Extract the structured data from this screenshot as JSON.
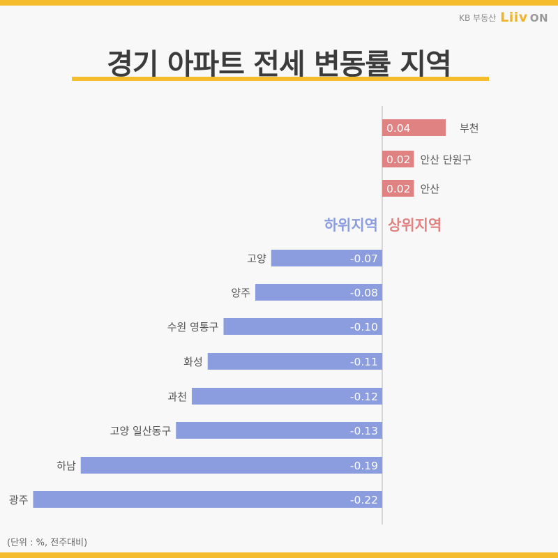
{
  "brand": {
    "kb_text": "KB 부동산",
    "logo_text": "Liiv",
    "logo_on": "ON"
  },
  "title": "경기 아파트 전세 변동률 지역",
  "unit_note": "(단위 : %, 전주대비)",
  "colors": {
    "positive": "#e08282",
    "negative": "#8b9ddf",
    "accent": "#f5bc2e"
  },
  "chart_data": {
    "type": "bar",
    "orientation": "horizontal",
    "groups": [
      {
        "label": "상위지역",
        "color": "#e08282"
      },
      {
        "label": "하위지역",
        "color": "#8b9ddf"
      }
    ],
    "categories": [
      "부천",
      "안산 단원구",
      "안산",
      "고양",
      "양주",
      "수원 영통구",
      "화성",
      "과천",
      "고양 일산동구",
      "하남",
      "광주"
    ],
    "values": [
      0.04,
      0.02,
      0.02,
      -0.07,
      -0.08,
      -0.1,
      -0.11,
      -0.12,
      -0.13,
      -0.19,
      -0.22
    ],
    "value_labels": [
      "0.04",
      "0.02",
      "0.02",
      "-0.07",
      "-0.08",
      "-0.10",
      "-0.11",
      "-0.12",
      "-0.13",
      "-0.19",
      "-0.22"
    ]
  }
}
